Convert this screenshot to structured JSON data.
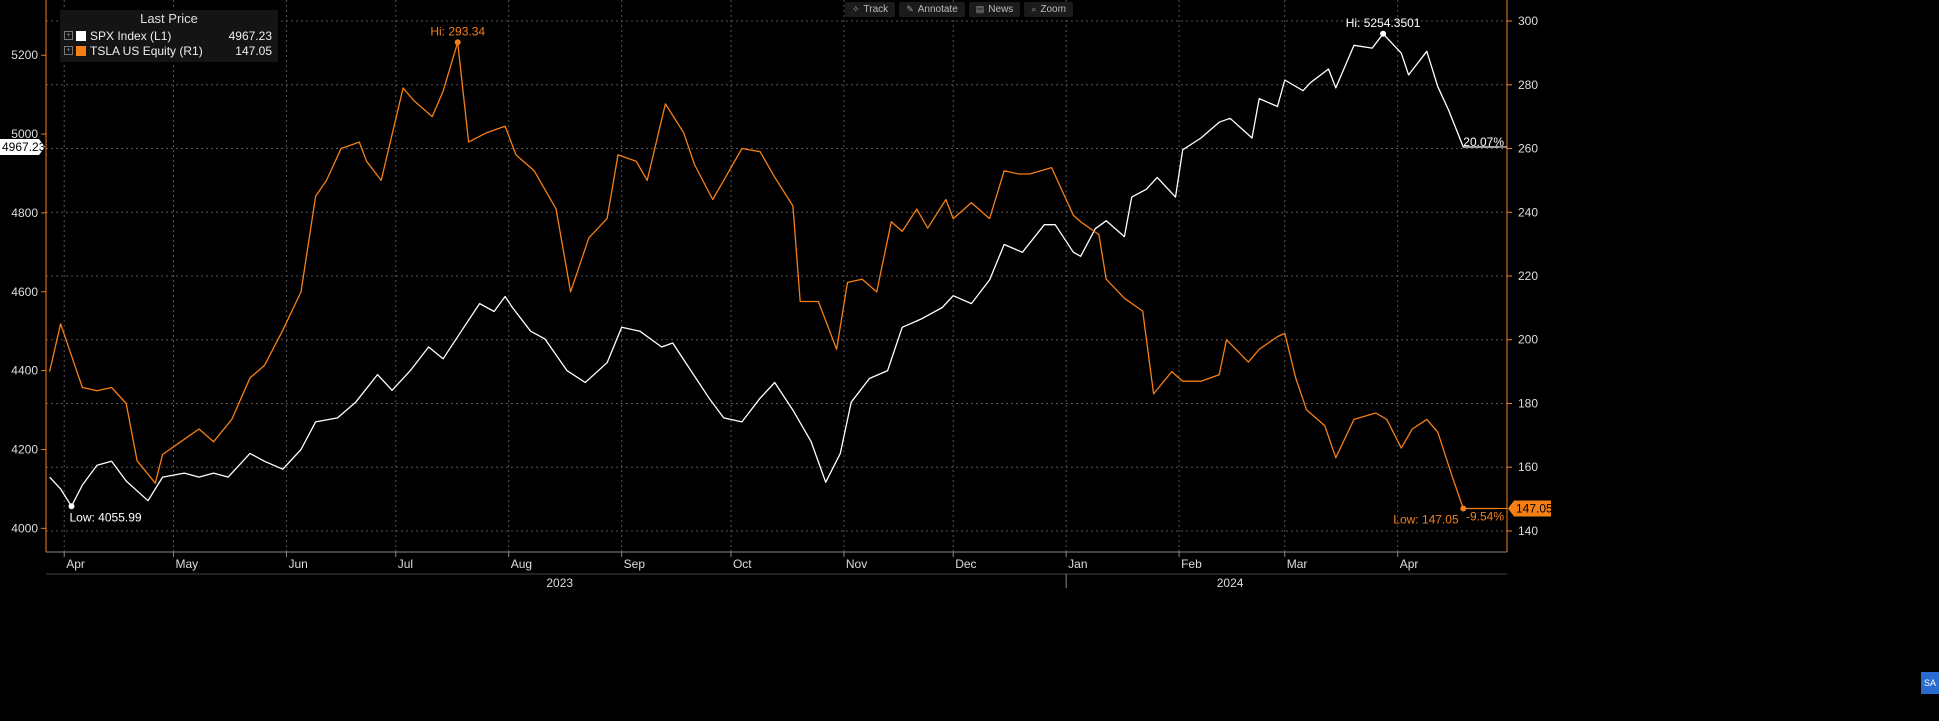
{
  "toolbar": {
    "track_label": "Track",
    "annotate_label": "Annotate",
    "news_label": "News",
    "zoom_label": "Zoom"
  },
  "legend": {
    "header": "Last Price",
    "items": [
      {
        "name": "SPX Index  (L1)",
        "value": "4967.23",
        "color": "#ffffff"
      },
      {
        "name": "TSLA US Equity  (R1)",
        "value": "147.05",
        "color": "#f57f17"
      }
    ]
  },
  "side_tab": "SA",
  "chart_data": {
    "type": "line",
    "x_start": "2023-03-27",
    "x_end": "2024-05-01",
    "x_ticks": [
      {
        "label": "Apr",
        "date": "2023-04-01"
      },
      {
        "label": "May",
        "date": "2023-05-01"
      },
      {
        "label": "Jun",
        "date": "2023-06-01"
      },
      {
        "label": "Jul",
        "date": "2023-07-01"
      },
      {
        "label": "Aug",
        "date": "2023-08-01"
      },
      {
        "label": "Sep",
        "date": "2023-09-01"
      },
      {
        "label": "Oct",
        "date": "2023-10-01"
      },
      {
        "label": "Nov",
        "date": "2023-11-01"
      },
      {
        "label": "Dec",
        "date": "2023-12-01"
      },
      {
        "label": "Jan",
        "date": "2024-01-01"
      },
      {
        "label": "Feb",
        "date": "2024-02-01"
      },
      {
        "label": "Mar",
        "date": "2024-03-01"
      },
      {
        "label": "Apr",
        "date": "2024-04-01"
      }
    ],
    "year_labels": [
      {
        "label": "2023",
        "date": "2023-08-15"
      },
      {
        "label": "2024",
        "date": "2024-02-15"
      }
    ],
    "year_divider_date": "2024-01-01",
    "y_left": {
      "min": 3940,
      "max": 5340,
      "ticks": [
        4000,
        4200,
        4400,
        4600,
        4800,
        5000,
        5200
      ]
    },
    "y_right": {
      "min": 133.4,
      "max": 306.6,
      "ticks": [
        140,
        160,
        180,
        200,
        220,
        240,
        260,
        280,
        300
      ]
    },
    "series": [
      {
        "name": "SPX Index  (L1)",
        "axis": "left",
        "color": "#ffffff",
        "points": [
          [
            "2023-03-28",
            4130
          ],
          [
            "2023-03-31",
            4100
          ],
          [
            "2023-04-03",
            4055.99
          ],
          [
            "2023-04-06",
            4110
          ],
          [
            "2023-04-10",
            4160
          ],
          [
            "2023-04-14",
            4170
          ],
          [
            "2023-04-18",
            4120
          ],
          [
            "2023-04-24",
            4070
          ],
          [
            "2023-04-28",
            4130
          ],
          [
            "2023-05-04",
            4140
          ],
          [
            "2023-05-08",
            4130
          ],
          [
            "2023-05-12",
            4140
          ],
          [
            "2023-05-16",
            4130
          ],
          [
            "2023-05-22",
            4190
          ],
          [
            "2023-05-26",
            4170
          ],
          [
            "2023-05-31",
            4150
          ],
          [
            "2023-06-05",
            4200
          ],
          [
            "2023-06-09",
            4270
          ],
          [
            "2023-06-15",
            4280
          ],
          [
            "2023-06-20",
            4320
          ],
          [
            "2023-06-26",
            4390
          ],
          [
            "2023-06-30",
            4350
          ],
          [
            "2023-07-05",
            4400
          ],
          [
            "2023-07-10",
            4460
          ],
          [
            "2023-07-14",
            4430
          ],
          [
            "2023-07-19",
            4500
          ],
          [
            "2023-07-24",
            4570
          ],
          [
            "2023-07-28",
            4550
          ],
          [
            "2023-07-31",
            4588
          ],
          [
            "2023-08-02",
            4560
          ],
          [
            "2023-08-07",
            4500
          ],
          [
            "2023-08-11",
            4480
          ],
          [
            "2023-08-17",
            4400
          ],
          [
            "2023-08-22",
            4370
          ],
          [
            "2023-08-28",
            4420
          ],
          [
            "2023-09-01",
            4510
          ],
          [
            "2023-09-06",
            4500
          ],
          [
            "2023-09-12",
            4460
          ],
          [
            "2023-09-15",
            4470
          ],
          [
            "2023-09-20",
            4400
          ],
          [
            "2023-09-25",
            4330
          ],
          [
            "2023-09-29",
            4280
          ],
          [
            "2023-10-04",
            4270
          ],
          [
            "2023-10-09",
            4330
          ],
          [
            "2023-10-13",
            4370
          ],
          [
            "2023-10-18",
            4300
          ],
          [
            "2023-10-23",
            4220
          ],
          [
            "2023-10-27",
            4117
          ],
          [
            "2023-10-31",
            4190
          ],
          [
            "2023-11-03",
            4320
          ],
          [
            "2023-11-08",
            4380
          ],
          [
            "2023-11-13",
            4400
          ],
          [
            "2023-11-17",
            4510
          ],
          [
            "2023-11-22",
            4530
          ],
          [
            "2023-11-28",
            4560
          ],
          [
            "2023-12-01",
            4590
          ],
          [
            "2023-12-06",
            4570
          ],
          [
            "2023-12-11",
            4630
          ],
          [
            "2023-12-15",
            4720
          ],
          [
            "2023-12-20",
            4700
          ],
          [
            "2023-12-26",
            4770
          ],
          [
            "2023-12-29",
            4770
          ],
          [
            "2024-01-03",
            4700
          ],
          [
            "2024-01-05",
            4690
          ],
          [
            "2024-01-09",
            4760
          ],
          [
            "2024-01-12",
            4780
          ],
          [
            "2024-01-17",
            4740
          ],
          [
            "2024-01-19",
            4840
          ],
          [
            "2024-01-23",
            4860
          ],
          [
            "2024-01-26",
            4890
          ],
          [
            "2024-01-31",
            4840
          ],
          [
            "2024-02-02",
            4960
          ],
          [
            "2024-02-07",
            4990
          ],
          [
            "2024-02-12",
            5030
          ],
          [
            "2024-02-15",
            5040
          ],
          [
            "2024-02-21",
            4990
          ],
          [
            "2024-02-23",
            5090
          ],
          [
            "2024-02-28",
            5070
          ],
          [
            "2024-03-01",
            5137
          ],
          [
            "2024-03-06",
            5110
          ],
          [
            "2024-03-08",
            5130
          ],
          [
            "2024-03-13",
            5165
          ],
          [
            "2024-03-15",
            5117
          ],
          [
            "2024-03-20",
            5225
          ],
          [
            "2024-03-25",
            5218
          ],
          [
            "2024-03-28",
            5254.35
          ],
          [
            "2024-04-02",
            5205
          ],
          [
            "2024-04-04",
            5150
          ],
          [
            "2024-04-09",
            5210
          ],
          [
            "2024-04-12",
            5120
          ],
          [
            "2024-04-15",
            5060
          ],
          [
            "2024-04-19",
            4967.23
          ],
          [
            "2024-04-24",
            4967.23
          ],
          [
            "2024-04-29",
            4967.23
          ]
        ]
      },
      {
        "name": "TSLA US Equity  (R1)",
        "axis": "right",
        "color": "#f57f17",
        "points": [
          [
            "2023-03-28",
            190
          ],
          [
            "2023-03-31",
            205
          ],
          [
            "2023-04-03",
            195
          ],
          [
            "2023-04-06",
            185
          ],
          [
            "2023-04-10",
            184
          ],
          [
            "2023-04-14",
            185
          ],
          [
            "2023-04-18",
            180
          ],
          [
            "2023-04-21",
            162
          ],
          [
            "2023-04-26",
            155
          ],
          [
            "2023-04-28",
            164
          ],
          [
            "2023-05-03",
            168
          ],
          [
            "2023-05-08",
            172
          ],
          [
            "2023-05-12",
            168
          ],
          [
            "2023-05-17",
            175
          ],
          [
            "2023-05-22",
            188
          ],
          [
            "2023-05-26",
            192
          ],
          [
            "2023-05-31",
            203
          ],
          [
            "2023-06-05",
            215
          ],
          [
            "2023-06-09",
            245
          ],
          [
            "2023-06-12",
            250
          ],
          [
            "2023-06-16",
            260
          ],
          [
            "2023-06-21",
            262
          ],
          [
            "2023-06-23",
            256
          ],
          [
            "2023-06-27",
            250
          ],
          [
            "2023-07-03",
            279
          ],
          [
            "2023-07-06",
            275
          ],
          [
            "2023-07-11",
            270
          ],
          [
            "2023-07-14",
            278
          ],
          [
            "2023-07-18",
            293.34
          ],
          [
            "2023-07-21",
            262
          ],
          [
            "2023-07-26",
            265
          ],
          [
            "2023-07-31",
            267
          ],
          [
            "2023-08-03",
            258
          ],
          [
            "2023-08-08",
            253
          ],
          [
            "2023-08-14",
            241
          ],
          [
            "2023-08-18",
            215
          ],
          [
            "2023-08-23",
            232
          ],
          [
            "2023-08-28",
            238
          ],
          [
            "2023-08-31",
            258
          ],
          [
            "2023-09-05",
            256
          ],
          [
            "2023-09-08",
            250
          ],
          [
            "2023-09-13",
            274
          ],
          [
            "2023-09-18",
            265
          ],
          [
            "2023-09-21",
            255
          ],
          [
            "2023-09-26",
            244
          ],
          [
            "2023-09-29",
            250
          ],
          [
            "2023-10-04",
            260
          ],
          [
            "2023-10-09",
            259
          ],
          [
            "2023-10-13",
            251
          ],
          [
            "2023-10-18",
            242
          ],
          [
            "2023-10-20",
            212
          ],
          [
            "2023-10-25",
            212
          ],
          [
            "2023-10-30",
            197
          ],
          [
            "2023-11-02",
            218
          ],
          [
            "2023-11-06",
            219
          ],
          [
            "2023-11-10",
            215
          ],
          [
            "2023-11-14",
            237
          ],
          [
            "2023-11-17",
            234
          ],
          [
            "2023-11-21",
            241
          ],
          [
            "2023-11-24",
            235
          ],
          [
            "2023-11-29",
            244
          ],
          [
            "2023-12-01",
            238
          ],
          [
            "2023-12-06",
            243
          ],
          [
            "2023-12-11",
            238
          ],
          [
            "2023-12-15",
            253
          ],
          [
            "2023-12-19",
            252
          ],
          [
            "2023-12-22",
            252
          ],
          [
            "2023-12-28",
            254
          ],
          [
            "2024-01-03",
            239
          ],
          [
            "2024-01-05",
            237
          ],
          [
            "2024-01-10",
            233
          ],
          [
            "2024-01-12",
            219
          ],
          [
            "2024-01-17",
            213
          ],
          [
            "2024-01-22",
            209
          ],
          [
            "2024-01-25",
            183
          ],
          [
            "2024-01-30",
            190
          ],
          [
            "2024-02-02",
            187
          ],
          [
            "2024-02-07",
            187
          ],
          [
            "2024-02-12",
            189
          ],
          [
            "2024-02-14",
            200
          ],
          [
            "2024-02-20",
            193
          ],
          [
            "2024-02-23",
            197
          ],
          [
            "2024-02-28",
            201
          ],
          [
            "2024-03-01",
            202
          ],
          [
            "2024-03-04",
            188
          ],
          [
            "2024-03-07",
            178
          ],
          [
            "2024-03-12",
            173
          ],
          [
            "2024-03-15",
            163
          ],
          [
            "2024-03-20",
            175
          ],
          [
            "2024-03-26",
            177
          ],
          [
            "2024-03-29",
            175
          ],
          [
            "2024-04-02",
            166
          ],
          [
            "2024-04-05",
            172
          ],
          [
            "2024-04-09",
            175
          ],
          [
            "2024-04-12",
            171
          ],
          [
            "2024-04-16",
            157
          ],
          [
            "2024-04-19",
            147.05
          ],
          [
            "2024-04-24",
            147.05
          ],
          [
            "2024-04-29",
            147.05
          ]
        ]
      }
    ],
    "annotations": [
      {
        "series": 0,
        "text": "Hi: 5254.3501",
        "date": "2024-03-28",
        "value": 5254.35,
        "pos": "above"
      },
      {
        "series": 0,
        "text": "Low: 4055.99",
        "date": "2023-04-03",
        "value": 4055.99,
        "pos": "below"
      },
      {
        "series": 1,
        "text": "Hi: 293.34",
        "date": "2023-07-18",
        "value": 293.34,
        "pos": "above"
      },
      {
        "series": 1,
        "text": "Low: 147.05",
        "date": "2024-04-19",
        "value": 147.05,
        "pos": "below-left"
      }
    ],
    "change_labels": [
      {
        "series": 0,
        "text": "20.07%"
      },
      {
        "series": 1,
        "text": "-9.54%"
      }
    ],
    "last_value_tags": [
      {
        "series": 0,
        "text": "4967.23",
        "axis": "left"
      },
      {
        "series": 1,
        "text": "147.05",
        "axis": "right"
      }
    ],
    "grid": true
  }
}
